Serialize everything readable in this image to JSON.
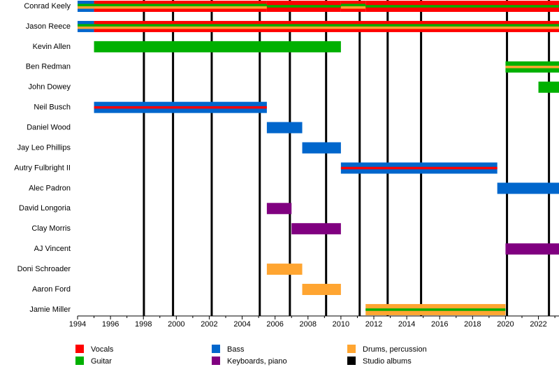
{
  "chart_data": {
    "type": "timeline",
    "xlim": [
      1994,
      2023.25
    ],
    "xticks": [
      1994,
      1996,
      1998,
      2000,
      2002,
      2004,
      2006,
      2008,
      2010,
      2012,
      2014,
      2016,
      2018,
      2020,
      2022
    ],
    "xminorticks": [
      1995,
      1997,
      1999,
      2001,
      2003,
      2005,
      2007,
      2009,
      2011,
      2013,
      2015,
      2017,
      2019,
      2021,
      2023
    ],
    "roles": [
      {
        "name": "Vocals",
        "color": "#ff0000"
      },
      {
        "name": "Bass",
        "color": "#0066cc"
      },
      {
        "name": "Guitar",
        "color": "#00b000"
      },
      {
        "name": "Drums, percussion",
        "color": "#ffa531"
      },
      {
        "name": "Keyboards, piano",
        "color": "#800080"
      }
    ],
    "albums_label": "Studio albums",
    "albums_color": "#000000",
    "albums": [
      1998.03,
      1999.8,
      2002.15,
      2005.07,
      2006.9,
      2009.1,
      2011.14,
      2012.84,
      2014.87,
      2020.09,
      2022.64
    ],
    "members": [
      {
        "name": "Conrad Keely",
        "bars": [
          {
            "start": 1994,
            "end": 1995,
            "roles": [
              1,
              2,
              3
            ]
          },
          {
            "start": 1995,
            "end": 2005.5,
            "roles": [
              0,
              2,
              3
            ]
          },
          {
            "start": 2005.5,
            "end": 2010,
            "roles": [
              0,
              2
            ]
          },
          {
            "start": 2010,
            "end": 2011.5,
            "roles": [
              0,
              2,
              3
            ]
          },
          {
            "start": 2011.5,
            "end": 2023.25,
            "roles": [
              0,
              2
            ]
          }
        ]
      },
      {
        "name": "Jason Reece",
        "bars": [
          {
            "start": 1994,
            "end": 1995,
            "roles": [
              1,
              2,
              3
            ]
          },
          {
            "start": 1995,
            "end": 2023.25,
            "roles": [
              0,
              2,
              3
            ]
          }
        ]
      },
      {
        "name": "Kevin Allen",
        "bars": [
          {
            "start": 1995,
            "end": 2010,
            "roles": [
              2
            ]
          }
        ]
      },
      {
        "name": "Ben Redman",
        "bars": [
          {
            "start": 2020,
            "end": 2023.25,
            "roles": [
              2,
              3
            ]
          }
        ]
      },
      {
        "name": "John Dowey",
        "bars": [
          {
            "start": 2022,
            "end": 2023.25,
            "roles": [
              2
            ]
          }
        ]
      },
      {
        "name": "Neil Busch",
        "bars": [
          {
            "start": 1995,
            "end": 2005.5,
            "roles": [
              1,
              0
            ]
          }
        ]
      },
      {
        "name": "Daniel Wood",
        "bars": [
          {
            "start": 2005.5,
            "end": 2007.65,
            "roles": [
              1
            ]
          }
        ]
      },
      {
        "name": "Jay Leo Phillips",
        "bars": [
          {
            "start": 2007.65,
            "end": 2010,
            "roles": [
              1
            ]
          }
        ]
      },
      {
        "name": "Autry Fulbright II",
        "bars": [
          {
            "start": 2010,
            "end": 2019.5,
            "roles": [
              1,
              0
            ]
          }
        ]
      },
      {
        "name": "Alec Padron",
        "bars": [
          {
            "start": 2019.5,
            "end": 2023.25,
            "roles": [
              1
            ]
          }
        ]
      },
      {
        "name": "David Longoria",
        "bars": [
          {
            "start": 2005.5,
            "end": 2007,
            "roles": [
              4
            ]
          }
        ]
      },
      {
        "name": "Clay Morris",
        "bars": [
          {
            "start": 2007,
            "end": 2010,
            "roles": [
              4
            ]
          }
        ]
      },
      {
        "name": "AJ Vincent",
        "bars": [
          {
            "start": 2020,
            "end": 2023.25,
            "roles": [
              4
            ]
          }
        ]
      },
      {
        "name": "Doni Schroader",
        "bars": [
          {
            "start": 2005.5,
            "end": 2007.65,
            "roles": [
              3
            ]
          }
        ]
      },
      {
        "name": "Aaron Ford",
        "bars": [
          {
            "start": 2007.65,
            "end": 2010,
            "roles": [
              3
            ]
          }
        ]
      },
      {
        "name": "Jamie Miller",
        "bars": [
          {
            "start": 2011.5,
            "end": 2020,
            "roles": [
              3,
              2
            ]
          }
        ]
      }
    ]
  }
}
